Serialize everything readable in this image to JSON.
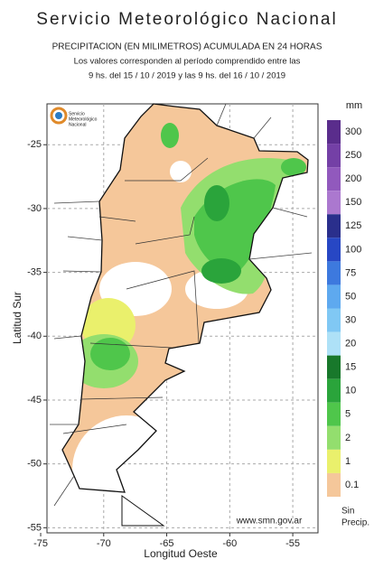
{
  "header": {
    "agency": "Servicio Meteorológico Nacional",
    "title": "PRECIPITACION (EN MILIMETROS) ACUMULADA EN 24 HORAS",
    "subtitle_lines": [
      "Los valores corresponden al período comprendido entre las",
      "9 hs. del 15 / 10 / 2019  y las 9 hs. del 16 / 10 / 2019"
    ]
  },
  "logo": {
    "lines": [
      "Servicio",
      "Meteorológico",
      "Nacional"
    ]
  },
  "map": {
    "xlim": [
      -74.5,
      -53
    ],
    "ylim": [
      -21.8,
      -55.4
    ],
    "xticks": [
      -75,
      -70,
      -65,
      -60,
      -55
    ],
    "yticks": [
      -25,
      -30,
      -35,
      -40,
      -45,
      -50,
      -55
    ],
    "xlabel": "Longitud Oeste",
    "ylabel": "Latitud Sur",
    "grid": true,
    "website": "www.smn.gov.ar"
  },
  "legend": {
    "unit": "mm",
    "items": [
      {
        "label": "300",
        "color": "#5a2d8c"
      },
      {
        "label": "250",
        "color": "#7440a6"
      },
      {
        "label": "200",
        "color": "#9159bd"
      },
      {
        "label": "150",
        "color": "#ab78cf"
      },
      {
        "label": "125",
        "color": "#2a2f8c"
      },
      {
        "label": "100",
        "color": "#2747c4"
      },
      {
        "label": "75",
        "color": "#3d79de"
      },
      {
        "label": "50",
        "color": "#5ea9ef"
      },
      {
        "label": "30",
        "color": "#80c8f4"
      },
      {
        "label": "20",
        "color": "#aee1f7"
      },
      {
        "label": "15",
        "color": "#18782b"
      },
      {
        "label": "10",
        "color": "#2aa43b"
      },
      {
        "label": "5",
        "color": "#4fc64b"
      },
      {
        "label": "2",
        "color": "#93de6e"
      },
      {
        "label": "1",
        "color": "#eaf06c"
      },
      {
        "label": "0.1",
        "color": "#f5c79a"
      }
    ],
    "none_lines": [
      "Sin",
      "Precip."
    ]
  }
}
